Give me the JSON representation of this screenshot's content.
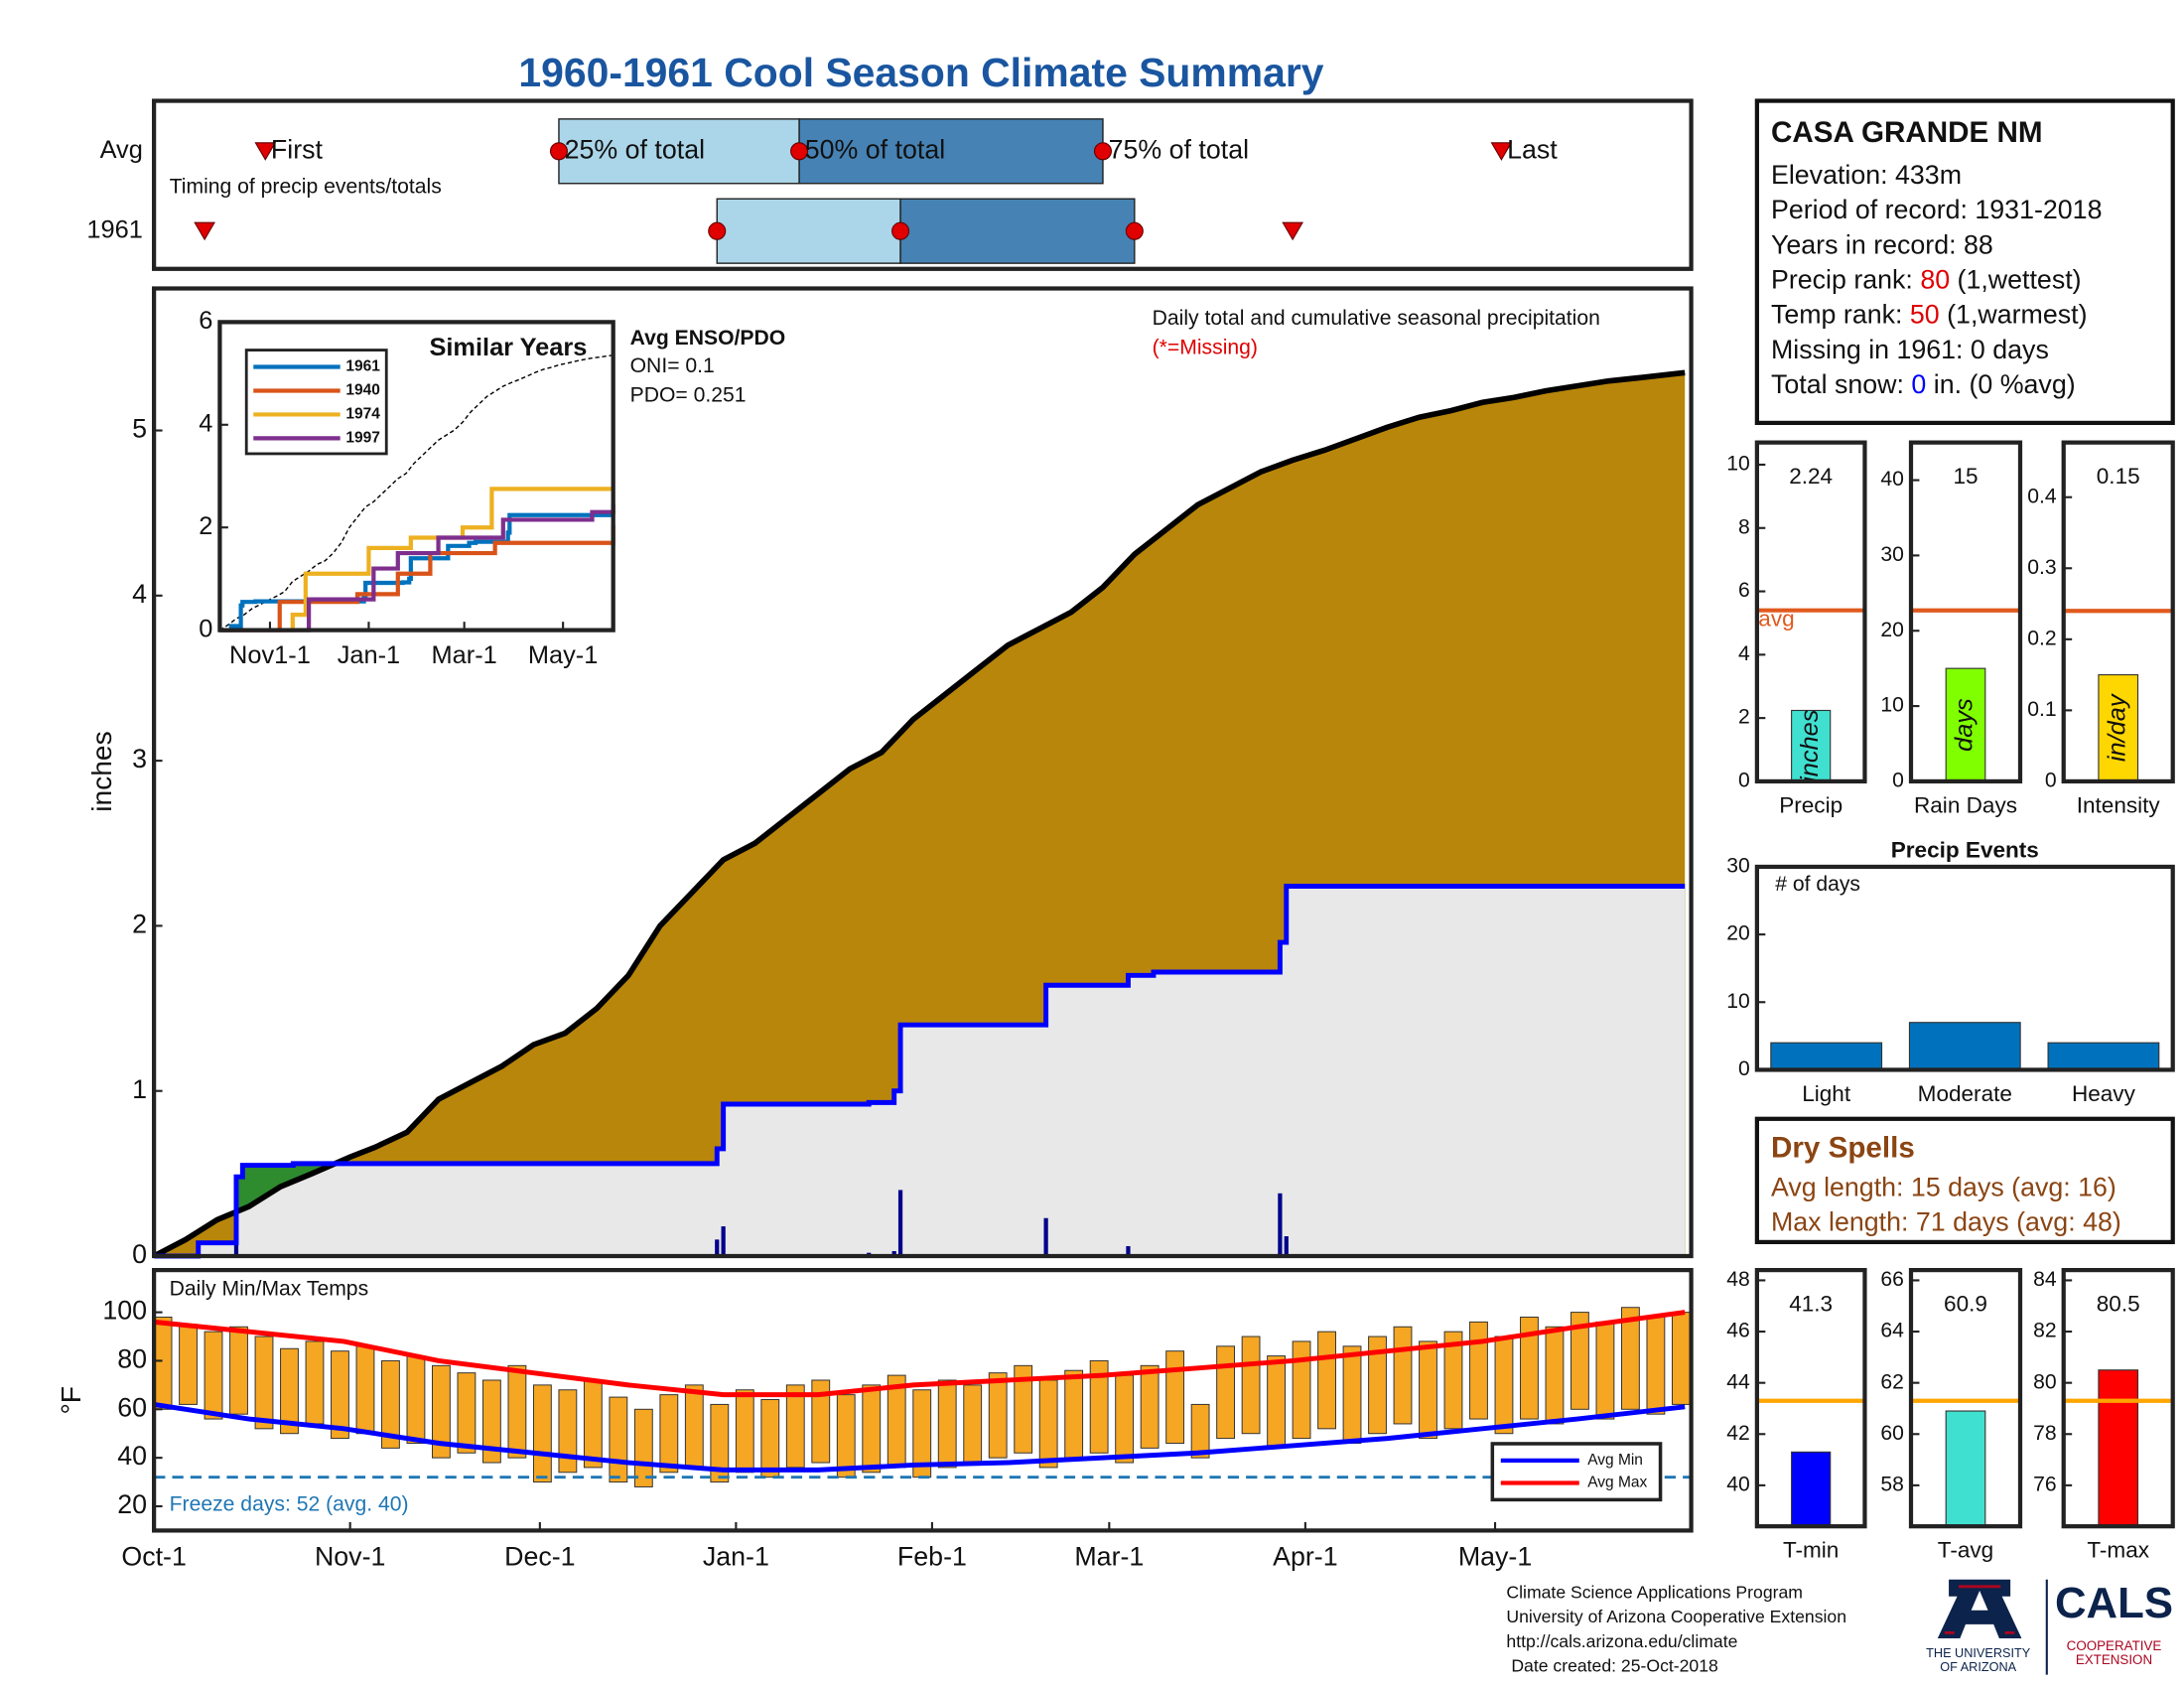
{
  "title": "1960-1961 Cool Season Climate Summary",
  "station": {
    "name": "CASA GRANDE NM",
    "lines": [
      "Elevation: 433m",
      "Period of record: 1931-2018",
      "Years in record: 88"
    ],
    "precip_rank": {
      "prefix": "Precip rank: ",
      "value": 80,
      "suffix": " (1,wettest)",
      "color": "#e00000"
    },
    "temp_rank": {
      "prefix": "Temp rank: ",
      "value": 50,
      "suffix": " (1,warmest)",
      "color": "#e00000"
    },
    "missing": "Missing in 1961: 0 days",
    "snow": {
      "prefix": "Total snow: ",
      "value": 0,
      "suffix": " in. (0 %avg)",
      "color": "#0000ff"
    }
  },
  "dry_spells": {
    "title": "Dry Spells",
    "lines": [
      "Avg length: 15 days (avg: 16)",
      "Max length: 71 days (avg: 48)"
    ],
    "color": "#8b4513"
  },
  "footer": {
    "lines": [
      "Climate Science Applications Program",
      "University of Arizona Cooperative Extension",
      "http://cals.arizona.edu/climate",
      " Date created: 25-Oct-2018"
    ],
    "university": [
      "THE UNIVERSITY",
      "OF ARIZONA"
    ],
    "cals": "CALS",
    "cals_sub": [
      "COOPERATIVE",
      "EXTENSION"
    ]
  },
  "chart_data": [
    {
      "type": "timeline",
      "note": "Timing of precip events/totals",
      "xlim": [
        0,
        243
      ],
      "point_labels": [
        "First",
        "25% of total",
        "50% of total",
        "75% of total",
        "Last"
      ],
      "series": [
        {
          "name": "Avg",
          "values": [
            17.6,
            64,
            102,
            150,
            213
          ]
        },
        {
          "name": "1961",
          "values": [
            8,
            89,
            118,
            155,
            180
          ]
        }
      ],
      "colors": {
        "early": "#abd5e8",
        "late": "#4682b4",
        "marker": "#e00000"
      }
    },
    {
      "type": "line",
      "ylabel": "inches",
      "xlim": [
        0,
        243
      ],
      "ylim": [
        0,
        5.86
      ],
      "yticks": [
        0,
        1,
        2,
        3,
        4,
        5
      ],
      "annotations": [
        "Daily total and cumulative seasonal precipitation",
        "(*=Missing)"
      ],
      "enso": {
        "title": "Avg ENSO/PDO",
        "lines": [
          "ONI= 0.1",
          "PDO= 0.251"
        ]
      },
      "above_fill": "#2e8b2e",
      "series": [
        {
          "color": "#000000",
          "fill": "#b8860b",
          "x": [
            0,
            5,
            10,
            15,
            20,
            25,
            31,
            35,
            40,
            45,
            50,
            55,
            60,
            65,
            70,
            75,
            80,
            85,
            90,
            95,
            100,
            105,
            110,
            115,
            120,
            125,
            130,
            135,
            140,
            145,
            150,
            155,
            160,
            165,
            170,
            175,
            180,
            185,
            190,
            195,
            200,
            205,
            210,
            215,
            220,
            225,
            230,
            235,
            242
          ],
          "values": [
            0,
            0.1,
            0.22,
            0.3,
            0.42,
            0.5,
            0.6,
            0.66,
            0.75,
            0.95,
            1.05,
            1.15,
            1.28,
            1.35,
            1.5,
            1.7,
            2.0,
            2.2,
            2.4,
            2.5,
            2.65,
            2.8,
            2.95,
            3.05,
            3.25,
            3.4,
            3.55,
            3.7,
            3.8,
            3.9,
            4.05,
            4.25,
            4.4,
            4.55,
            4.65,
            4.75,
            4.82,
            4.88,
            4.95,
            5.02,
            5.08,
            5.12,
            5.17,
            5.2,
            5.24,
            5.27,
            5.3,
            5.32,
            5.35
          ]
        },
        {
          "color": "#0000ff",
          "fill": "#e8e8e8",
          "step": true,
          "x": [
            0,
            7,
            13,
            14,
            22,
            89,
            90,
            113,
            117,
            118,
            141,
            154,
            158,
            178,
            179,
            242
          ],
          "values": [
            0,
            0.08,
            0.48,
            0.55,
            0.56,
            0.65,
            0.92,
            0.93,
            1.0,
            1.4,
            1.64,
            1.7,
            1.72,
            1.9,
            2.24,
            2.24
          ]
        }
      ],
      "daily": {
        "color": "#00008b",
        "x": [
          7,
          13,
          89,
          90,
          113,
          117,
          118,
          141,
          154,
          178,
          179
        ],
        "values": [
          0.08,
          0.1,
          0.1,
          0.18,
          0.02,
          0.03,
          0.4,
          0.23,
          0.06,
          0.38,
          0.12
        ]
      }
    },
    {
      "type": "line",
      "title": "Similar Years",
      "xlim": [
        0,
        243
      ],
      "ylim": [
        0,
        6
      ],
      "yticks": [
        0,
        2,
        4,
        6
      ],
      "xticks": [
        {
          "value": 31,
          "label": "Nov1-1"
        },
        {
          "value": 92,
          "label": "Jan-1"
        },
        {
          "value": 151,
          "label": "Mar-1"
        },
        {
          "value": 212,
          "label": "May-1"
        }
      ],
      "series": [
        {
          "name": "1961",
          "color": "#0072bd",
          "x": [
            0,
            7,
            13,
            14,
            22,
            89,
            90,
            113,
            117,
            118,
            141,
            154,
            158,
            178,
            179,
            243
          ],
          "values": [
            0,
            0.08,
            0.48,
            0.55,
            0.56,
            0.65,
            0.92,
            0.93,
            1.0,
            1.4,
            1.64,
            1.7,
            1.72,
            1.9,
            2.24,
            2.24
          ]
        },
        {
          "name": "1940",
          "color": "#d95319",
          "x": [
            0,
            37,
            85,
            110,
            130,
            170,
            243
          ],
          "values": [
            0,
            0.55,
            0.7,
            1.1,
            1.5,
            1.7,
            2.05
          ]
        },
        {
          "name": "1974",
          "color": "#edb120",
          "x": [
            0,
            45,
            53,
            92,
            118,
            150,
            168,
            243
          ],
          "values": [
            0,
            0.3,
            1.1,
            1.6,
            1.8,
            2.0,
            2.75,
            2.75
          ]
        },
        {
          "name": "1997",
          "color": "#7e2f8e",
          "x": [
            0,
            30,
            55,
            95,
            110,
            135,
            175,
            230,
            243
          ],
          "values": [
            0,
            0,
            0.6,
            1.2,
            1.5,
            1.8,
            2.15,
            2.3,
            2.45
          ]
        }
      ]
    },
    {
      "type": "bar_range",
      "title": "Daily Min/Max Temps",
      "ylabel": "°F",
      "xlim": [
        0,
        243
      ],
      "ylim": [
        10,
        117.4
      ],
      "yticks": [
        20,
        40,
        60,
        80,
        100
      ],
      "xticks": [
        {
          "value": 0,
          "label": "Oct-1"
        },
        {
          "value": 31,
          "label": "Nov-1"
        },
        {
          "value": 61,
          "label": "Dec-1"
        },
        {
          "value": 92,
          "label": "Jan-1"
        },
        {
          "value": 123,
          "label": "Feb-1"
        },
        {
          "value": 151,
          "label": "Mar-1"
        },
        {
          "value": 182,
          "label": "Apr-1"
        },
        {
          "value": 212,
          "label": "May-1"
        }
      ],
      "color": "#f5a623",
      "x": [
        0,
        4,
        8,
        12,
        16,
        20,
        24,
        28,
        32,
        36,
        40,
        44,
        48,
        52,
        56,
        60,
        64,
        68,
        72,
        76,
        80,
        84,
        88,
        92,
        96,
        100,
        104,
        108,
        112,
        116,
        120,
        124,
        128,
        132,
        136,
        140,
        144,
        148,
        152,
        156,
        160,
        164,
        168,
        172,
        176,
        180,
        184,
        188,
        192,
        196,
        200,
        204,
        208,
        212,
        216,
        220,
        224,
        228,
        232,
        236,
        240
      ],
      "max": [
        98,
        95,
        92,
        94,
        90,
        85,
        88,
        84,
        86,
        80,
        82,
        78,
        75,
        72,
        78,
        70,
        68,
        72,
        65,
        60,
        66,
        70,
        62,
        68,
        64,
        70,
        72,
        66,
        70,
        74,
        68,
        72,
        70,
        75,
        78,
        72,
        76,
        80,
        74,
        78,
        84,
        62,
        86,
        90,
        82,
        88,
        92,
        86,
        90,
        94,
        88,
        92,
        96,
        90,
        98,
        94,
        100,
        96,
        102,
        98,
        100
      ],
      "min": [
        60,
        62,
        56,
        58,
        52,
        50,
        54,
        48,
        50,
        44,
        46,
        40,
        42,
        38,
        40,
        30,
        34,
        36,
        30,
        28,
        34,
        36,
        30,
        34,
        32,
        36,
        38,
        32,
        34,
        36,
        32,
        36,
        38,
        40,
        42,
        36,
        40,
        42,
        38,
        44,
        46,
        40,
        48,
        50,
        44,
        48,
        52,
        46,
        50,
        54,
        48,
        52,
        56,
        50,
        56,
        54,
        60,
        56,
        60,
        58,
        62
      ],
      "series": [
        {
          "name": "Avg Min",
          "color": "#0000ff",
          "x": [
            0,
            15,
            30,
            45,
            60,
            75,
            90,
            105,
            120,
            135,
            150,
            165,
            180,
            195,
            210,
            225,
            242
          ],
          "values": [
            62,
            56,
            52,
            46,
            42,
            38,
            35,
            35,
            37,
            38,
            40,
            42,
            45,
            48,
            52,
            56,
            61
          ]
        },
        {
          "name": "Avg Max",
          "color": "#ff0000",
          "x": [
            0,
            15,
            30,
            45,
            60,
            75,
            90,
            105,
            120,
            135,
            150,
            165,
            180,
            195,
            210,
            225,
            242
          ],
          "values": [
            96,
            92,
            88,
            80,
            75,
            70,
            66,
            66,
            70,
            72,
            74,
            77,
            80,
            84,
            88,
            94,
            100
          ]
        }
      ],
      "freeze": {
        "value": 32,
        "label": "Freeze days: 52 (avg. 40)",
        "color": "#1f77b4"
      },
      "legend": "lower right"
    },
    {
      "type": "bar",
      "categories": [
        "Precip"
      ],
      "values": [
        2.24
      ],
      "unit_label": "inches",
      "color": "#40e0d0",
      "avg": {
        "value": 5.4,
        "label": "avg",
        "color": "#e05a1e"
      },
      "ylim": [
        0,
        10.7
      ],
      "yticks": [
        0,
        2,
        4,
        6,
        8,
        10
      ]
    },
    {
      "type": "bar",
      "categories": [
        "Rain Days"
      ],
      "values": [
        15
      ],
      "unit_label": "days",
      "color": "#80ff00",
      "avg": {
        "value": 22.7,
        "color": "#e05a1e"
      },
      "ylim": [
        0,
        45
      ],
      "yticks": [
        0,
        10,
        20,
        30,
        40
      ]
    },
    {
      "type": "bar",
      "categories": [
        "Intensity"
      ],
      "values": [
        0.15
      ],
      "unit_label": "in/day",
      "color": "#ffd700",
      "avg": {
        "value": 0.24,
        "color": "#e05a1e"
      },
      "ylim": [
        0,
        0.477
      ],
      "yticks": [
        0,
        0.1,
        0.2,
        0.3,
        0.4
      ]
    },
    {
      "type": "bar",
      "title": "Precip Events",
      "annotation": "# of days",
      "categories": [
        "Light",
        "Moderate",
        "Heavy"
      ],
      "values": [
        4,
        7,
        4
      ],
      "color": "#0072bd",
      "ylim": [
        0,
        30
      ],
      "yticks": [
        0,
        10,
        20,
        30
      ]
    },
    {
      "type": "bar",
      "categories": [
        "T-min"
      ],
      "values": [
        41.3
      ],
      "color": "#0000ff",
      "avg": {
        "value": 43.3,
        "color": "#ffa500"
      },
      "ylim": [
        38.4,
        48.4
      ],
      "yticks": [
        40,
        42,
        44,
        46,
        48
      ]
    },
    {
      "type": "bar",
      "categories": [
        "T-avg"
      ],
      "values": [
        60.9
      ],
      "color": "#40e0d0",
      "avg": {
        "value": 61.3,
        "color": "#ffa500"
      },
      "ylim": [
        56.4,
        66.4
      ],
      "yticks": [
        58,
        60,
        62,
        64,
        66
      ]
    },
    {
      "type": "bar",
      "categories": [
        "T-max"
      ],
      "values": [
        80.5
      ],
      "color": "#ff0000",
      "avg": {
        "value": 79.3,
        "color": "#ffa500"
      },
      "ylim": [
        74.4,
        84.4
      ],
      "yticks": [
        76,
        78,
        80,
        82,
        84
      ]
    }
  ]
}
